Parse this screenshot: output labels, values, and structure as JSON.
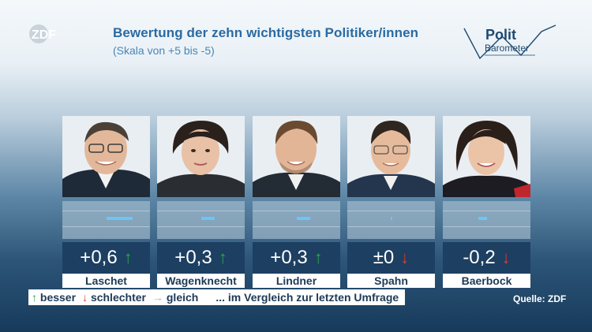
{
  "header": {
    "title": "Bewertung der zehn wichtigsten Politiker/innen",
    "subtitle": "(Skala von +5 bis -5)",
    "broadcaster_logo": "ZDF",
    "show_logo_line1": "Polit",
    "show_logo_line2": "Barometer"
  },
  "colors": {
    "up": "#2aa54a",
    "down": "#e23a2f",
    "neutral": "#a9b6c2",
    "bar": "#6cc6f3",
    "panel": "#1d3f61"
  },
  "politicians": [
    {
      "name": "Laschet",
      "score_text": "+0,6",
      "score": 0.6,
      "trend": "up",
      "arrow": "↑",
      "bar_fraction": 0.6
    },
    {
      "name": "Wagenknecht",
      "score_text": "+0,3",
      "score": 0.3,
      "trend": "up",
      "arrow": "↑",
      "bar_fraction": 0.3
    },
    {
      "name": "Lindner",
      "score_text": "+0,3",
      "score": 0.3,
      "trend": "up",
      "arrow": "↑",
      "bar_fraction": 0.3
    },
    {
      "name": "Spahn",
      "score_text": "±0",
      "score": 0.0,
      "trend": "down",
      "arrow": "↓",
      "bar_fraction": 0.0
    },
    {
      "name": "Baerbock",
      "score_text": "-0,2",
      "score": -0.2,
      "trend": "down",
      "arrow": "↓",
      "bar_fraction": 0.2
    }
  ],
  "legend": {
    "up_arrow": "↑",
    "up_label": "besser",
    "down_arrow": "↓",
    "down_label": "schlechter",
    "same_arrow": "→",
    "same_label": "gleich",
    "note": "... im Vergleich zur letzten Umfrage"
  },
  "source": "Quelle: ZDF"
}
